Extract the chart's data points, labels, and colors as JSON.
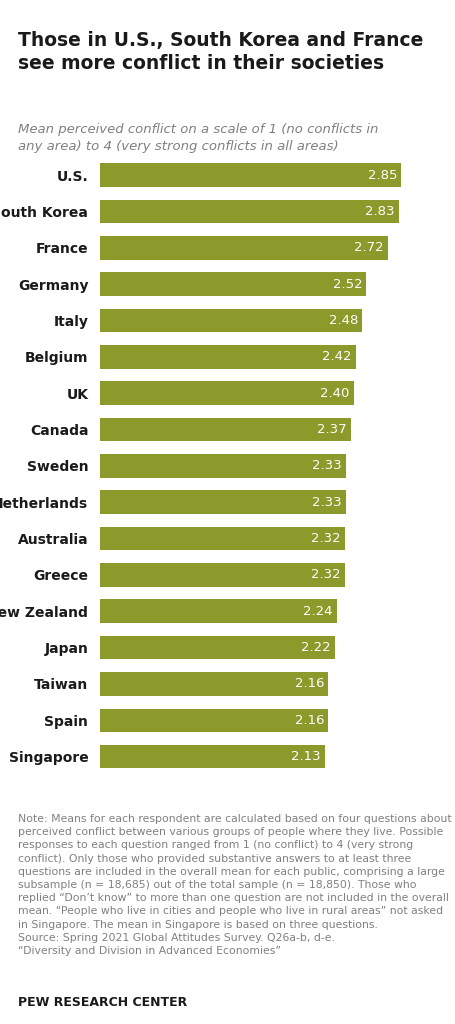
{
  "title": "Those in U.S., South Korea and France\nsee more conflict in their societies",
  "subtitle": "Mean perceived conflict on a scale of 1 (no conflicts in\nany area) to 4 (very strong conflicts in all areas)",
  "countries": [
    "U.S.",
    "South Korea",
    "France",
    "Germany",
    "Italy",
    "Belgium",
    "UK",
    "Canada",
    "Sweden",
    "Netherlands",
    "Australia",
    "Greece",
    "New Zealand",
    "Japan",
    "Taiwan",
    "Spain",
    "Singapore"
  ],
  "values": [
    2.85,
    2.83,
    2.72,
    2.52,
    2.48,
    2.42,
    2.4,
    2.37,
    2.33,
    2.33,
    2.32,
    2.32,
    2.24,
    2.22,
    2.16,
    2.16,
    2.13
  ],
  "bar_color": "#8b9a2a",
  "text_color_on_bar": "#ffffff",
  "bg_color": "#ffffff",
  "title_color": "#1a1a1a",
  "subtitle_color": "#808080",
  "note_color": "#808080",
  "note_text": "Note: Means for each respondent are calculated based on four questions about perceived conflict between various groups of people where they live. Possible responses to each question ranged from 1 (no conflict) to 4 (very strong conflict). Only those who provided substantive answers to at least three questions are included in the overall mean for each public, comprising a large subsample (n = 18,685) out of the total sample (n = 18,850). Those who replied “Don’t know” to more than one question are not included in the overall mean. “People who live in cities and people who live in rural areas” not asked in Singapore. The mean in Singapore is based on three questions.\nSource: Spring 2021 Global Attitudes Survey. Q26a-b, d-e.\n“Diversity and Division in Advanced Economies”",
  "footer": "PEW RESEARCH CENTER",
  "xlim": [
    0,
    3.1
  ]
}
